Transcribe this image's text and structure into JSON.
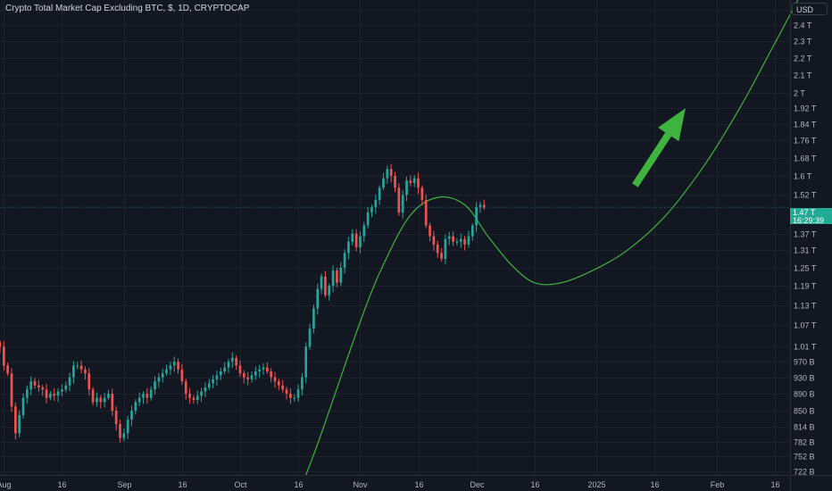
{
  "header": {
    "title": "Crypto Total Market Cap Excluding BTC, $, 1D, CRYPTOCAP"
  },
  "price_axis": {
    "currency": "USD"
  },
  "current": {
    "value_label": "1.47 T",
    "countdown": "16:29:39"
  },
  "colors": {
    "background": "#131722",
    "up": "#26a69a",
    "down": "#ef5350",
    "grid": "#1e222d",
    "text": "#b2b5be",
    "annotation": "#3fb33f"
  },
  "chart_data": {
    "type": "candlestick",
    "title": "Crypto Total Market Cap Excluding BTC, $, 1D, CRYPTOCAP",
    "unit": "USD",
    "y_scale": "log",
    "ylim": [
      715000000000.0,
      2570000000000.0
    ],
    "xlim": [
      "2024-07-31",
      "2025-02-20"
    ],
    "grid": true,
    "x_ticks": [
      {
        "date": "2024-08-01",
        "label": "Aug"
      },
      {
        "date": "2024-08-16",
        "label": "16"
      },
      {
        "date": "2024-09-01",
        "label": "Sep"
      },
      {
        "date": "2024-09-16",
        "label": "16"
      },
      {
        "date": "2024-10-01",
        "label": "Oct"
      },
      {
        "date": "2024-10-16",
        "label": "16"
      },
      {
        "date": "2024-11-01",
        "label": "Nov"
      },
      {
        "date": "2024-11-16",
        "label": "16"
      },
      {
        "date": "2024-12-01",
        "label": "Dec"
      },
      {
        "date": "2024-12-16",
        "label": "16"
      },
      {
        "date": "2025-01-01",
        "label": "2025"
      },
      {
        "date": "2025-01-16",
        "label": "16"
      },
      {
        "date": "2025-02-01",
        "label": "Feb"
      },
      {
        "date": "2025-02-16",
        "label": "16"
      }
    ],
    "y_ticks": [
      {
        "value": 2500000000000.0,
        "label": "2.5 T"
      },
      {
        "value": 2400000000000.0,
        "label": "2.4 T"
      },
      {
        "value": 2300000000000.0,
        "label": "2.3 T"
      },
      {
        "value": 2200000000000.0,
        "label": "2.2 T"
      },
      {
        "value": 2100000000000.0,
        "label": "2.1 T"
      },
      {
        "value": 2000000000000.0,
        "label": "2 T"
      },
      {
        "value": 1920000000000.0,
        "label": "1.92 T"
      },
      {
        "value": 1840000000000.0,
        "label": "1.84 T"
      },
      {
        "value": 1760000000000.0,
        "label": "1.76 T"
      },
      {
        "value": 1680000000000.0,
        "label": "1.68 T"
      },
      {
        "value": 1600000000000.0,
        "label": "1.6 T"
      },
      {
        "value": 1520000000000.0,
        "label": "1.52 T"
      },
      {
        "value": 1370000000000.0,
        "label": "1.37 T"
      },
      {
        "value": 1310000000000.0,
        "label": "1.31 T"
      },
      {
        "value": 1250000000000.0,
        "label": "1.25 T"
      },
      {
        "value": 1190000000000.0,
        "label": "1.19 T"
      },
      {
        "value": 1130000000000.0,
        "label": "1.13 T"
      },
      {
        "value": 1070000000000.0,
        "label": "1.07 T"
      },
      {
        "value": 1010000000000.0,
        "label": "1.01 T"
      },
      {
        "value": 970000000000.0,
        "label": "970 B"
      },
      {
        "value": 930000000000.0,
        "label": "930 B"
      },
      {
        "value": 890000000000.0,
        "label": "890 B"
      },
      {
        "value": 850000000000.0,
        "label": "850 B"
      },
      {
        "value": 814000000000.0,
        "label": "814 B"
      },
      {
        "value": 782000000000.0,
        "label": "782 B"
      },
      {
        "value": 752000000000.0,
        "label": "752 B"
      },
      {
        "value": 722000000000.0,
        "label": "722 B"
      }
    ],
    "last_value": 1470000000000.0,
    "candle_start": "2024-07-31",
    "closes": [
      1010,
      960,
      940,
      860,
      800,
      840,
      880,
      900,
      920,
      910,
      905,
      900,
      880,
      890,
      885,
      895,
      900,
      910,
      930,
      960,
      960,
      950,
      940,
      900,
      870,
      880,
      870,
      880,
      890,
      850,
      820,
      790,
      800,
      830,
      850,
      870,
      880,
      890,
      880,
      900,
      920,
      930,
      940,
      950,
      960,
      970,
      950,
      920,
      890,
      880,
      875,
      885,
      895,
      905,
      915,
      925,
      935,
      945,
      955,
      970,
      980,
      960,
      940,
      930,
      925,
      935,
      945,
      950,
      955,
      945,
      930,
      920,
      910,
      900,
      890,
      880,
      880,
      900,
      930,
      1010,
      1060,
      1120,
      1180,
      1220,
      1160,
      1190,
      1240,
      1200,
      1250,
      1300,
      1340,
      1370,
      1320,
      1360,
      1400,
      1450,
      1470,
      1500,
      1550,
      1590,
      1630,
      1600,
      1550,
      1450,
      1520,
      1580,
      1570,
      1590,
      1550,
      1500,
      1400,
      1360,
      1330,
      1300,
      1280,
      1350,
      1360,
      1340,
      1340,
      1350,
      1330,
      1360,
      1400,
      1470,
      1480,
      1470
    ],
    "annotation": {
      "curve": [
        [
          "2024-10-18",
          715000000000.0
        ],
        [
          "2024-10-22",
          800000000000.0
        ],
        [
          "2024-11-01",
          1080000000000.0
        ],
        [
          "2024-11-07",
          1260000000000.0
        ],
        [
          "2024-11-14",
          1440000000000.0
        ],
        [
          "2024-11-21",
          1510000000000.0
        ],
        [
          "2024-11-28",
          1480000000000.0
        ],
        [
          "2024-12-04",
          1360000000000.0
        ],
        [
          "2024-12-10",
          1260000000000.0
        ],
        [
          "2024-12-16",
          1200000000000.0
        ],
        [
          "2024-12-23",
          1200000000000.0
        ],
        [
          "2024-12-31",
          1240000000000.0
        ],
        [
          "2025-01-09",
          1310000000000.0
        ],
        [
          "2025-01-19",
          1440000000000.0
        ],
        [
          "2025-01-29",
          1650000000000.0
        ],
        [
          "2025-02-07",
          1920000000000.0
        ],
        [
          "2025-02-15",
          2240000000000.0
        ],
        [
          "2025-02-22",
          2570000000000.0
        ]
      ],
      "arrow": {
        "from": [
          "2025-01-11",
          1560000000000.0
        ],
        "to": [
          "2025-01-24",
          1920000000000.0
        ]
      }
    }
  }
}
